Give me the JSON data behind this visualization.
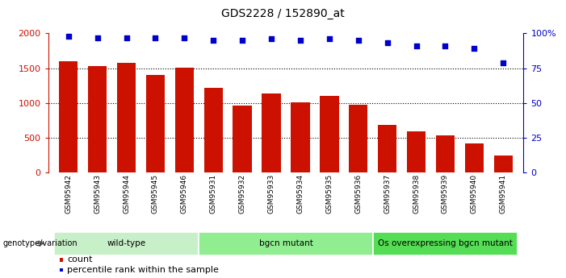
{
  "title": "GDS2228 / 152890_at",
  "samples": [
    "GSM95942",
    "GSM95943",
    "GSM95944",
    "GSM95945",
    "GSM95946",
    "GSM95931",
    "GSM95932",
    "GSM95933",
    "GSM95934",
    "GSM95935",
    "GSM95936",
    "GSM95937",
    "GSM95938",
    "GSM95939",
    "GSM95940",
    "GSM95941"
  ],
  "counts": [
    1600,
    1530,
    1570,
    1400,
    1510,
    1220,
    960,
    1140,
    1010,
    1100,
    970,
    680,
    595,
    535,
    420,
    240
  ],
  "percentile_ranks": [
    98,
    97,
    97,
    97,
    97,
    95,
    95,
    96,
    95,
    96,
    95,
    93,
    91,
    91,
    89,
    79
  ],
  "groups": [
    {
      "label": "wild-type",
      "start": 0,
      "end": 5,
      "color": "#c8f0c8"
    },
    {
      "label": "bgcn mutant",
      "start": 5,
      "end": 11,
      "color": "#90ee90"
    },
    {
      "label": "Os overexpressing bgcn mutant",
      "start": 11,
      "end": 16,
      "color": "#55dd55"
    }
  ],
  "bar_color": "#cc1100",
  "dot_color": "#0000cc",
  "left_axis_color": "#cc1100",
  "right_axis_color": "#0000cc",
  "ylim_left": [
    0,
    2000
  ],
  "yticks_left": [
    0,
    500,
    1000,
    1500,
    2000
  ],
  "ytick_labels_left": [
    "0",
    "500",
    "1000",
    "1500",
    "2000"
  ],
  "yticks_right": [
    0,
    25,
    50,
    75,
    100
  ],
  "ytick_labels_right": [
    "0",
    "25",
    "50",
    "75",
    "100%"
  ],
  "legend_count_label": "count",
  "legend_pct_label": "percentile rank within the sample",
  "genotype_label": "genotype/variation",
  "plot_bg": "#ffffff",
  "tick_label_bg": "#c8c8c8",
  "gridline_ticks": [
    500,
    1000,
    1500
  ]
}
